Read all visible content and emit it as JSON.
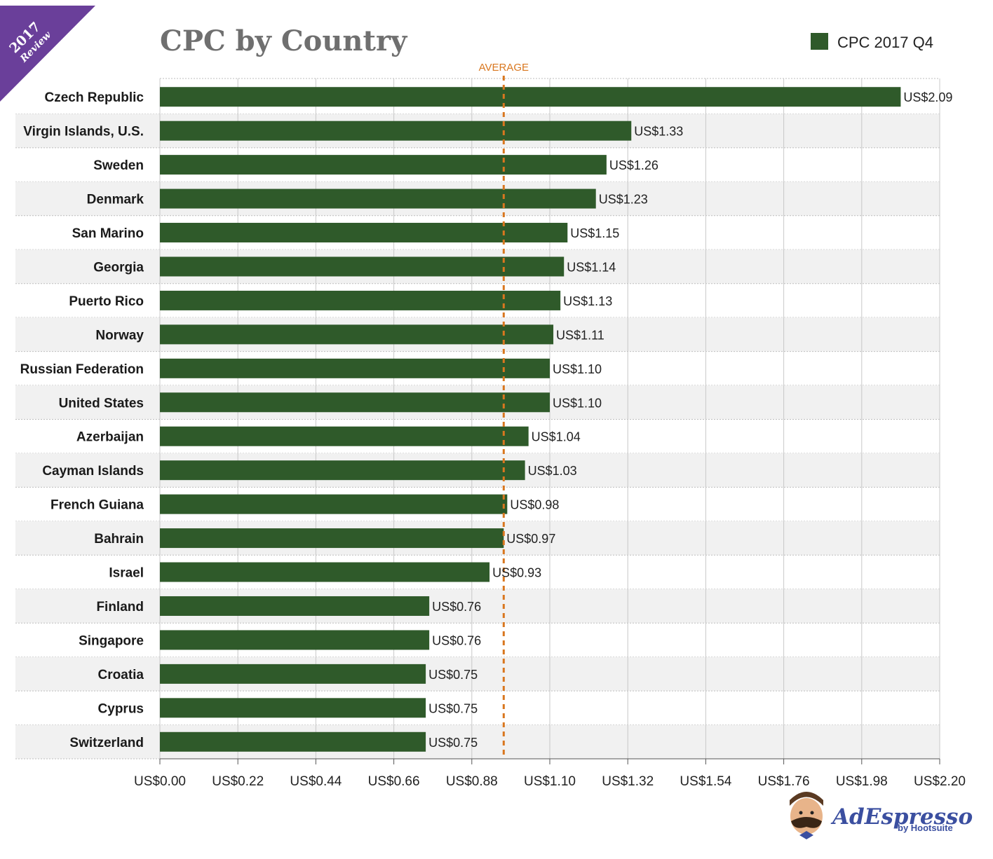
{
  "chart_data": {
    "type": "bar",
    "orientation": "horizontal",
    "title": "CPC by Country",
    "badge": {
      "year": "2017",
      "word": "Review"
    },
    "legend": {
      "label": "CPC 2017 Q4",
      "placement": "top-right"
    },
    "bar_color": "#2f5a2a",
    "average": {
      "label": "AVERAGE",
      "value": 0.97,
      "color": "#d9771f"
    },
    "xlim": [
      0,
      2.2
    ],
    "xticks": [
      "US$0.00",
      "US$0.22",
      "US$0.44",
      "US$0.66",
      "US$0.88",
      "US$1.10",
      "US$1.32",
      "US$1.54",
      "US$1.76",
      "US$1.98",
      "US$2.20"
    ],
    "grid": true,
    "categories": [
      "Czech Republic",
      "Virgin Islands, U.S.",
      "Sweden",
      "Denmark",
      "San Marino",
      "Georgia",
      "Puerto Rico",
      "Norway",
      "Russian Federation",
      "United States",
      "Azerbaijan",
      "Cayman Islands",
      "French Guiana",
      "Bahrain",
      "Israel",
      "Finland",
      "Singapore",
      "Croatia",
      "Cyprus",
      "Switzerland"
    ],
    "values": [
      2.09,
      1.33,
      1.26,
      1.23,
      1.15,
      1.14,
      1.13,
      1.11,
      1.1,
      1.1,
      1.04,
      1.03,
      0.98,
      0.97,
      0.93,
      0.76,
      0.76,
      0.75,
      0.75,
      0.75
    ],
    "value_labels": [
      "US$2.09",
      "US$1.33",
      "US$1.26",
      "US$1.23",
      "US$1.15",
      "US$1.14",
      "US$1.13",
      "US$1.11",
      "US$1.10",
      "US$1.10",
      "US$1.04",
      "US$1.03",
      "US$0.98",
      "US$0.97",
      "US$0.93",
      "US$0.76",
      "US$0.76",
      "US$0.75",
      "US$0.75",
      "US$0.75"
    ]
  },
  "brand": {
    "name": "AdEspresso",
    "sub": "by Hootsuite"
  }
}
